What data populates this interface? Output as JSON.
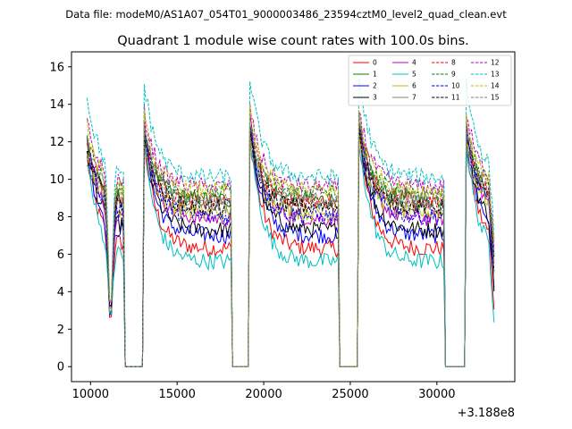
{
  "chart_data": {
    "type": "line",
    "suptitle": "Data file: modeM0/AS1A07_054T01_9000003486_23594cztM0_level2_quad_clean.evt",
    "title": "Quadrant 1 module wise count rates with 100.0s bins.",
    "xlabel": "",
    "ylabel": "",
    "x_offset_label": "+3.188e8",
    "xlim": [
      8900,
      34500
    ],
    "ylim": [
      -0.8,
      16.8
    ],
    "xticks": [
      10000,
      15000,
      20000,
      25000,
      30000
    ],
    "xtick_labels": [
      "10000",
      "15000",
      "20000",
      "25000",
      "30000"
    ],
    "yticks": [
      0,
      2,
      4,
      6,
      8,
      10,
      12,
      14,
      16
    ],
    "ytick_labels": [
      "0",
      "2",
      "4",
      "6",
      "8",
      "10",
      "12",
      "14",
      "16"
    ],
    "grid": false,
    "legend_position": "top-right",
    "series": [
      {
        "name": "0",
        "color": "#ff0000",
        "dash": "solid",
        "base": 6.3,
        "peak": 12.8
      },
      {
        "name": "1",
        "color": "#008000",
        "dash": "solid",
        "base": 8.9,
        "peak": 12.9
      },
      {
        "name": "2",
        "color": "#0000ff",
        "dash": "solid",
        "base": 7.0,
        "peak": 13.0
      },
      {
        "name": "3",
        "color": "#000000",
        "dash": "solid",
        "base": 7.3,
        "peak": 13.1
      },
      {
        "name": "4",
        "color": "#bf00bf",
        "dash": "solid",
        "base": 7.9,
        "peak": 13.6
      },
      {
        "name": "5",
        "color": "#00bfbf",
        "dash": "solid",
        "base": 5.6,
        "peak": 13.0
      },
      {
        "name": "6",
        "color": "#bfbf00",
        "dash": "solid",
        "base": 8.2,
        "peak": 12.9
      },
      {
        "name": "7",
        "color": "#808080",
        "dash": "solid",
        "base": 8.6,
        "peak": 12.2
      },
      {
        "name": "8",
        "color": "#ff0000",
        "dash": "dashed",
        "base": 8.8,
        "peak": 13.4
      },
      {
        "name": "9",
        "color": "#008000",
        "dash": "dashed",
        "base": 9.3,
        "peak": 13.2
      },
      {
        "name": "10",
        "color": "#0000ff",
        "dash": "dashed",
        "base": 8.0,
        "peak": 13.3
      },
      {
        "name": "11",
        "color": "#000000",
        "dash": "dashed",
        "base": 8.5,
        "peak": 13.0
      },
      {
        "name": "12",
        "color": "#bf00bf",
        "dash": "dashed",
        "base": 9.6,
        "peak": 14.2
      },
      {
        "name": "13",
        "color": "#00bfbf",
        "dash": "dashed",
        "base": 10.1,
        "peak": 15.9
      },
      {
        "name": "14",
        "color": "#bfbf00",
        "dash": "dashed",
        "base": 9.4,
        "peak": 13.9
      },
      {
        "name": "15",
        "color": "#808080",
        "dash": "dashed",
        "base": 8.9,
        "peak": 13.5
      }
    ],
    "time_range": [
      9800,
      33300
    ],
    "gaps": [
      [
        11950,
        13000
      ],
      [
        18150,
        19150
      ],
      [
        24350,
        25450
      ],
      [
        30500,
        31600
      ]
    ],
    "dips": [
      [
        11150,
        2.3
      ]
    ]
  }
}
